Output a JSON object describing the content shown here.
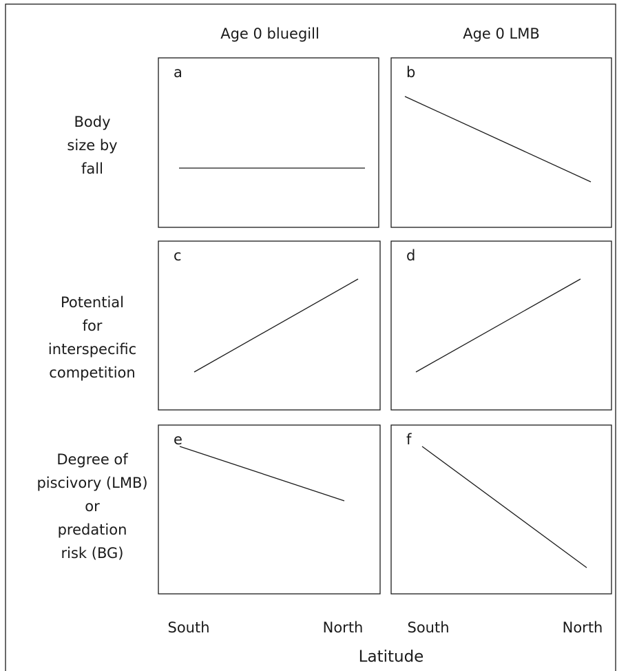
{
  "columns": [
    "Age 0 bluegill",
    "Age 0 LMB"
  ],
  "rows": [
    {
      "lines": [
        "Body",
        "size by",
        "fall"
      ]
    },
    {
      "lines": [
        "Potential",
        "for",
        "interspecific",
        "competition"
      ]
    },
    {
      "lines": [
        "Degree of",
        "piscivory (LMB)",
        "or",
        "predation",
        "risk (BG)"
      ]
    }
  ],
  "panels": [
    "a",
    "b",
    "c",
    "d",
    "e",
    "f"
  ],
  "x_labels": [
    [
      "South",
      "North"
    ],
    [
      "South",
      "North"
    ]
  ],
  "x_title": "Latitude"
}
